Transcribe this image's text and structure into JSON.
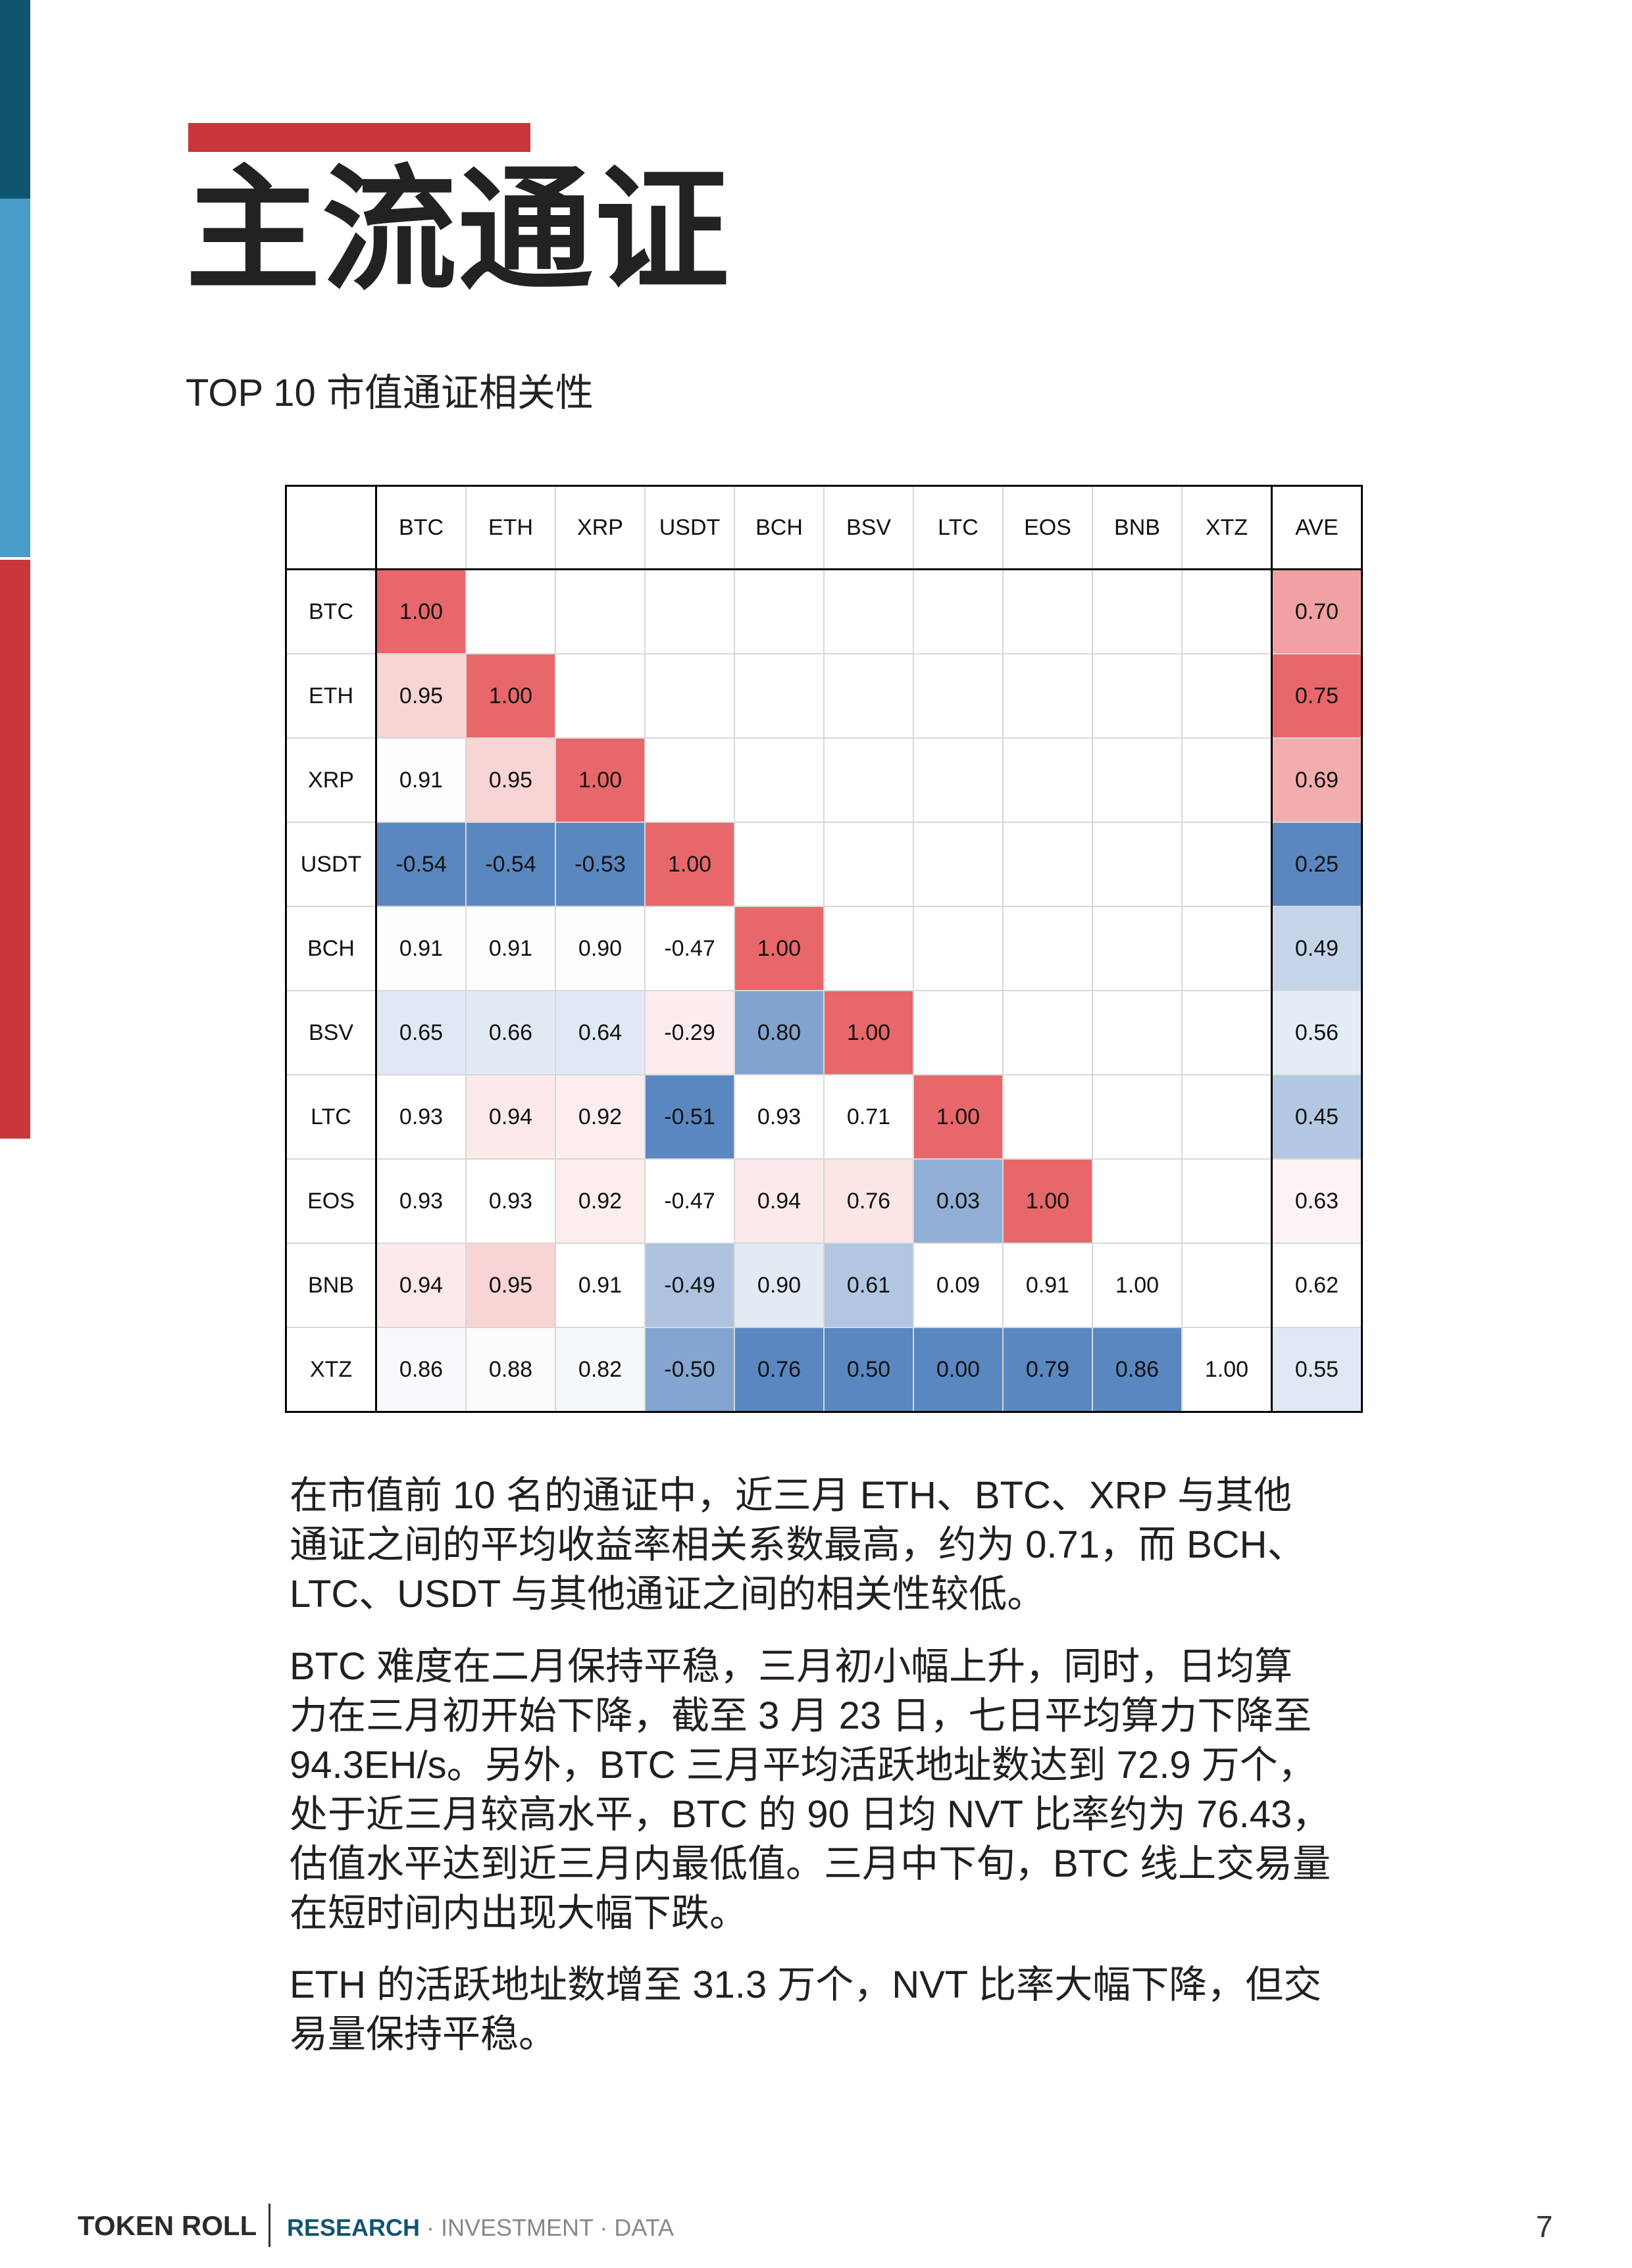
{
  "colors": {
    "sidebar_top": "#0f5570",
    "sidebar_mid": "#4a9cc9",
    "sidebar_bottom": "#c8373b",
    "accent_red": "#c8373b",
    "heat_high": "#e8676a",
    "heat_mid": "#ffffff",
    "heat_low": "#5a87bf"
  },
  "page_title": "主流通证",
  "subtitle": "TOP 10 市值通证相关性",
  "table": {
    "columns": [
      "BTC",
      "ETH",
      "XRP",
      "USDT",
      "BCH",
      "BSV",
      "LTC",
      "EOS",
      "BNB",
      "XTZ",
      "AVE"
    ],
    "rows": [
      {
        "label": "BTC",
        "values": [
          "1.00",
          "",
          "",
          "",
          "",
          "",
          "",
          "",
          "",
          "",
          "0.70"
        ]
      },
      {
        "label": "ETH",
        "values": [
          "0.95",
          "1.00",
          "",
          "",
          "",
          "",
          "",
          "",
          "",
          "",
          "0.75"
        ]
      },
      {
        "label": "XRP",
        "values": [
          "0.91",
          "0.95",
          "1.00",
          "",
          "",
          "",
          "",
          "",
          "",
          "",
          "0.69"
        ]
      },
      {
        "label": "USDT",
        "values": [
          "-0.54",
          "-0.54",
          "-0.53",
          "1.00",
          "",
          "",
          "",
          "",
          "",
          "",
          "0.25"
        ]
      },
      {
        "label": "BCH",
        "values": [
          "0.91",
          "0.91",
          "0.90",
          "-0.47",
          "1.00",
          "",
          "",
          "",
          "",
          "",
          "0.49"
        ]
      },
      {
        "label": "BSV",
        "values": [
          "0.65",
          "0.66",
          "0.64",
          "-0.29",
          "0.80",
          "1.00",
          "",
          "",
          "",
          "",
          "0.56"
        ]
      },
      {
        "label": "LTC",
        "values": [
          "0.93",
          "0.94",
          "0.92",
          "-0.51",
          "0.93",
          "0.71",
          "1.00",
          "",
          "",
          "",
          "0.45"
        ]
      },
      {
        "label": "EOS",
        "values": [
          "0.93",
          "0.93",
          "0.92",
          "-0.47",
          "0.94",
          "0.76",
          "0.03",
          "1.00",
          "",
          "",
          "0.63"
        ]
      },
      {
        "label": "BNB",
        "values": [
          "0.94",
          "0.95",
          "0.91",
          "-0.49",
          "0.90",
          "0.61",
          "0.09",
          "0.91",
          "1.00",
          "",
          "0.62"
        ]
      },
      {
        "label": "XTZ",
        "values": [
          "0.86",
          "0.88",
          "0.82",
          "-0.50",
          "0.76",
          "0.50",
          "0.00",
          "0.79",
          "0.86",
          "1.00",
          "0.55"
        ]
      }
    ]
  },
  "paragraphs": [
    [
      "在市值前 10 名的通证中，近三月 ETH、BTC、XRP 与其他",
      "通证之间的平均收益率相关系数最高，约为 0.71，而 BCH、",
      "LTC、USDT 与其他通证之间的相关性较低。"
    ],
    [
      "BTC 难度在二月保持平稳，三月初小幅上升，同时，日均算",
      "力在三月初开始下降，截至 3 月 23 日，七日平均算力下降至",
      "94.3EH/s。另外，BTC 三月平均活跃地址数达到 72.9 万个，",
      "处于近三月较高水平，BTC 的 90 日均 NVT 比率约为 76.43，",
      "估值水平达到近三月内最低值。三月中下旬，BTC 线上交易量",
      "在短时间内出现大幅下跌。"
    ],
    [
      "ETH 的活跃地址数增至 31.3 万个，NVT 比率大幅下降，但交",
      "易量保持平稳。"
    ]
  ],
  "footer": {
    "brand": "TOKEN ROLL",
    "tag_highlight": "RESEARCH",
    "tag_rest": " · INVESTMENT · DATA",
    "page_number": "7"
  }
}
